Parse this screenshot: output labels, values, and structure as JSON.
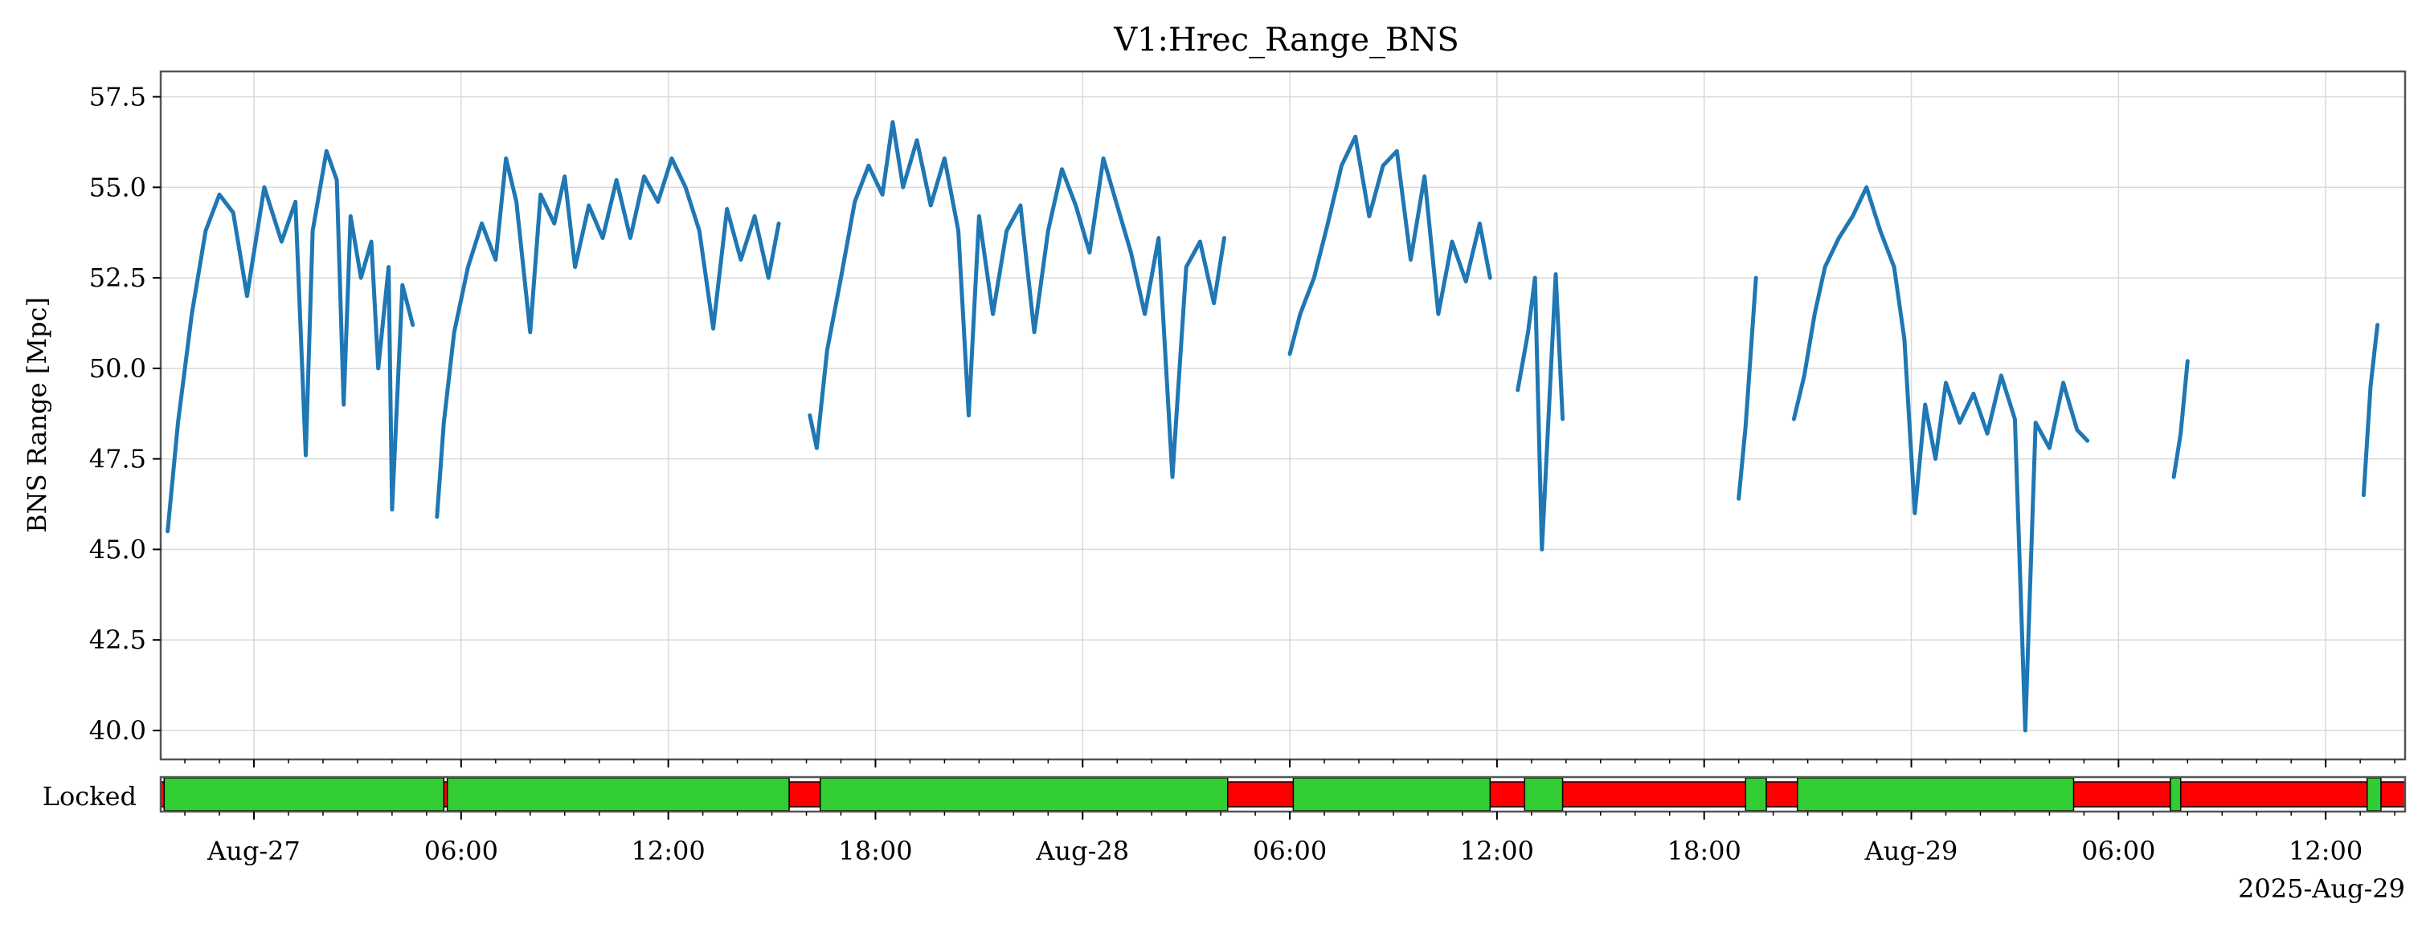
{
  "chart_data": {
    "type": "line",
    "title": "V1:Hrec_Range_BNS",
    "ylabel": "BNS Range [Mpc]",
    "ylim": [
      39.2,
      58.2
    ],
    "xlim_hours": [
      -2.7,
      62.3
    ],
    "yticks": [
      "40.0",
      "42.5",
      "45.0",
      "47.5",
      "50.0",
      "52.5",
      "55.0",
      "57.5"
    ],
    "ytick_values": [
      40.0,
      42.5,
      45.0,
      47.5,
      50.0,
      52.5,
      55.0,
      57.5
    ],
    "xticks": [
      {
        "t": 0,
        "label": "Aug-27"
      },
      {
        "t": 6,
        "label": "06:00"
      },
      {
        "t": 12,
        "label": "12:00"
      },
      {
        "t": 18,
        "label": "18:00"
      },
      {
        "t": 24,
        "label": "Aug-28"
      },
      {
        "t": 30,
        "label": "06:00"
      },
      {
        "t": 36,
        "label": "12:00"
      },
      {
        "t": 42,
        "label": "18:00"
      },
      {
        "t": 48,
        "label": "Aug-29"
      },
      {
        "t": 54,
        "label": "06:00"
      },
      {
        "t": 60,
        "label": "12:00"
      }
    ],
    "x_epoch_label": "2025-Aug-29",
    "grid": true,
    "series": [
      {
        "color": "#1f77b4",
        "segments": [
          [
            [
              -2.5,
              45.5
            ],
            [
              -2.2,
              48.5
            ],
            [
              -1.8,
              51.5
            ],
            [
              -1.4,
              53.8
            ],
            [
              -1.0,
              54.8
            ],
            [
              -0.6,
              54.3
            ],
            [
              -0.2,
              52.0
            ],
            [
              0.3,
              55.0
            ],
            [
              0.8,
              53.5
            ],
            [
              1.2,
              54.6
            ],
            [
              1.5,
              47.6
            ],
            [
              1.7,
              53.8
            ],
            [
              2.1,
              56.0
            ],
            [
              2.4,
              55.2
            ],
            [
              2.6,
              49.0
            ],
            [
              2.8,
              54.2
            ],
            [
              3.1,
              52.5
            ],
            [
              3.4,
              53.5
            ],
            [
              3.6,
              50.0
            ],
            [
              3.9,
              52.8
            ],
            [
              4.0,
              46.1
            ],
            [
              4.3,
              52.3
            ],
            [
              4.6,
              51.2
            ]
          ],
          [
            [
              5.3,
              45.9
            ],
            [
              5.5,
              48.5
            ],
            [
              5.8,
              51.0
            ],
            [
              6.2,
              52.8
            ],
            [
              6.6,
              54.0
            ],
            [
              7.0,
              53.0
            ],
            [
              7.3,
              55.8
            ],
            [
              7.6,
              54.6
            ],
            [
              8.0,
              51.0
            ],
            [
              8.3,
              54.8
            ],
            [
              8.7,
              54.0
            ],
            [
              9.0,
              55.3
            ],
            [
              9.3,
              52.8
            ],
            [
              9.7,
              54.5
            ],
            [
              10.1,
              53.6
            ],
            [
              10.5,
              55.2
            ],
            [
              10.9,
              53.6
            ],
            [
              11.3,
              55.3
            ],
            [
              11.7,
              54.6
            ],
            [
              12.1,
              55.8
            ],
            [
              12.5,
              55.0
            ],
            [
              12.9,
              53.8
            ],
            [
              13.3,
              51.1
            ],
            [
              13.7,
              54.4
            ],
            [
              14.1,
              53.0
            ],
            [
              14.5,
              54.2
            ],
            [
              14.9,
              52.5
            ],
            [
              15.2,
              54.0
            ]
          ],
          [
            [
              16.1,
              48.7
            ],
            [
              16.3,
              47.8
            ],
            [
              16.6,
              50.5
            ],
            [
              17.0,
              52.5
            ],
            [
              17.4,
              54.6
            ],
            [
              17.8,
              55.6
            ],
            [
              18.2,
              54.8
            ],
            [
              18.5,
              56.8
            ],
            [
              18.8,
              55.0
            ],
            [
              19.2,
              56.3
            ],
            [
              19.6,
              54.5
            ],
            [
              20.0,
              55.8
            ],
            [
              20.4,
              53.8
            ],
            [
              20.7,
              48.7
            ],
            [
              21.0,
              54.2
            ],
            [
              21.4,
              51.5
            ],
            [
              21.8,
              53.8
            ],
            [
              22.2,
              54.5
            ],
            [
              22.6,
              51.0
            ],
            [
              23.0,
              53.8
            ],
            [
              23.4,
              55.5
            ],
            [
              23.8,
              54.5
            ],
            [
              24.2,
              53.2
            ],
            [
              24.6,
              55.8
            ],
            [
              25.0,
              54.5
            ],
            [
              25.4,
              53.2
            ],
            [
              25.8,
              51.5
            ],
            [
              26.2,
              53.6
            ],
            [
              26.6,
              47.0
            ],
            [
              27.0,
              52.8
            ],
            [
              27.4,
              53.5
            ],
            [
              27.8,
              51.8
            ],
            [
              28.1,
              53.6
            ]
          ],
          [
            [
              30.0,
              50.4
            ],
            [
              30.3,
              51.5
            ],
            [
              30.7,
              52.5
            ],
            [
              31.1,
              54.0
            ],
            [
              31.5,
              55.6
            ],
            [
              31.9,
              56.4
            ],
            [
              32.3,
              54.2
            ],
            [
              32.7,
              55.6
            ],
            [
              33.1,
              56.0
            ],
            [
              33.5,
              53.0
            ],
            [
              33.9,
              55.3
            ],
            [
              34.3,
              51.5
            ],
            [
              34.7,
              53.5
            ],
            [
              35.1,
              52.4
            ],
            [
              35.5,
              54.0
            ],
            [
              35.8,
              52.5
            ]
          ],
          [
            [
              36.6,
              49.4
            ],
            [
              36.9,
              51.0
            ],
            [
              37.1,
              52.5
            ],
            [
              37.3,
              45.0
            ],
            [
              37.5,
              48.8
            ],
            [
              37.7,
              52.6
            ],
            [
              37.9,
              48.6
            ]
          ],
          [
            [
              43.0,
              46.4
            ],
            [
              43.2,
              48.4
            ],
            [
              43.5,
              52.5
            ]
          ],
          [
            [
              44.6,
              48.6
            ],
            [
              44.9,
              49.8
            ],
            [
              45.2,
              51.5
            ],
            [
              45.5,
              52.8
            ],
            [
              45.9,
              53.6
            ],
            [
              46.3,
              54.2
            ],
            [
              46.7,
              55.0
            ],
            [
              47.1,
              53.8
            ],
            [
              47.5,
              52.8
            ],
            [
              47.8,
              50.8
            ],
            [
              48.1,
              46.0
            ],
            [
              48.4,
              49.0
            ],
            [
              48.7,
              47.5
            ],
            [
              49.0,
              49.6
            ],
            [
              49.4,
              48.5
            ],
            [
              49.8,
              49.3
            ],
            [
              50.2,
              48.2
            ],
            [
              50.6,
              49.8
            ],
            [
              51.0,
              48.6
            ],
            [
              51.3,
              40.0
            ],
            [
              51.6,
              48.5
            ],
            [
              52.0,
              47.8
            ],
            [
              52.4,
              49.6
            ],
            [
              52.8,
              48.3
            ],
            [
              53.1,
              48.0
            ]
          ],
          [
            [
              55.6,
              47.0
            ],
            [
              55.8,
              48.2
            ],
            [
              56.0,
              50.2
            ]
          ],
          [
            [
              61.1,
              46.5
            ],
            [
              61.3,
              49.5
            ],
            [
              61.5,
              51.2
            ]
          ]
        ]
      }
    ],
    "state_bar": {
      "label": "Locked",
      "on_color": "#32cd32",
      "off_color": "#ff0000",
      "on_segments": [
        [
          -2.6,
          5.5
        ],
        [
          5.6,
          15.5
        ],
        [
          16.4,
          28.2
        ],
        [
          30.1,
          35.8
        ],
        [
          36.8,
          37.9
        ],
        [
          43.2,
          43.8
        ],
        [
          44.7,
          52.7
        ],
        [
          55.5,
          55.8
        ],
        [
          61.2,
          61.6
        ]
      ]
    }
  }
}
